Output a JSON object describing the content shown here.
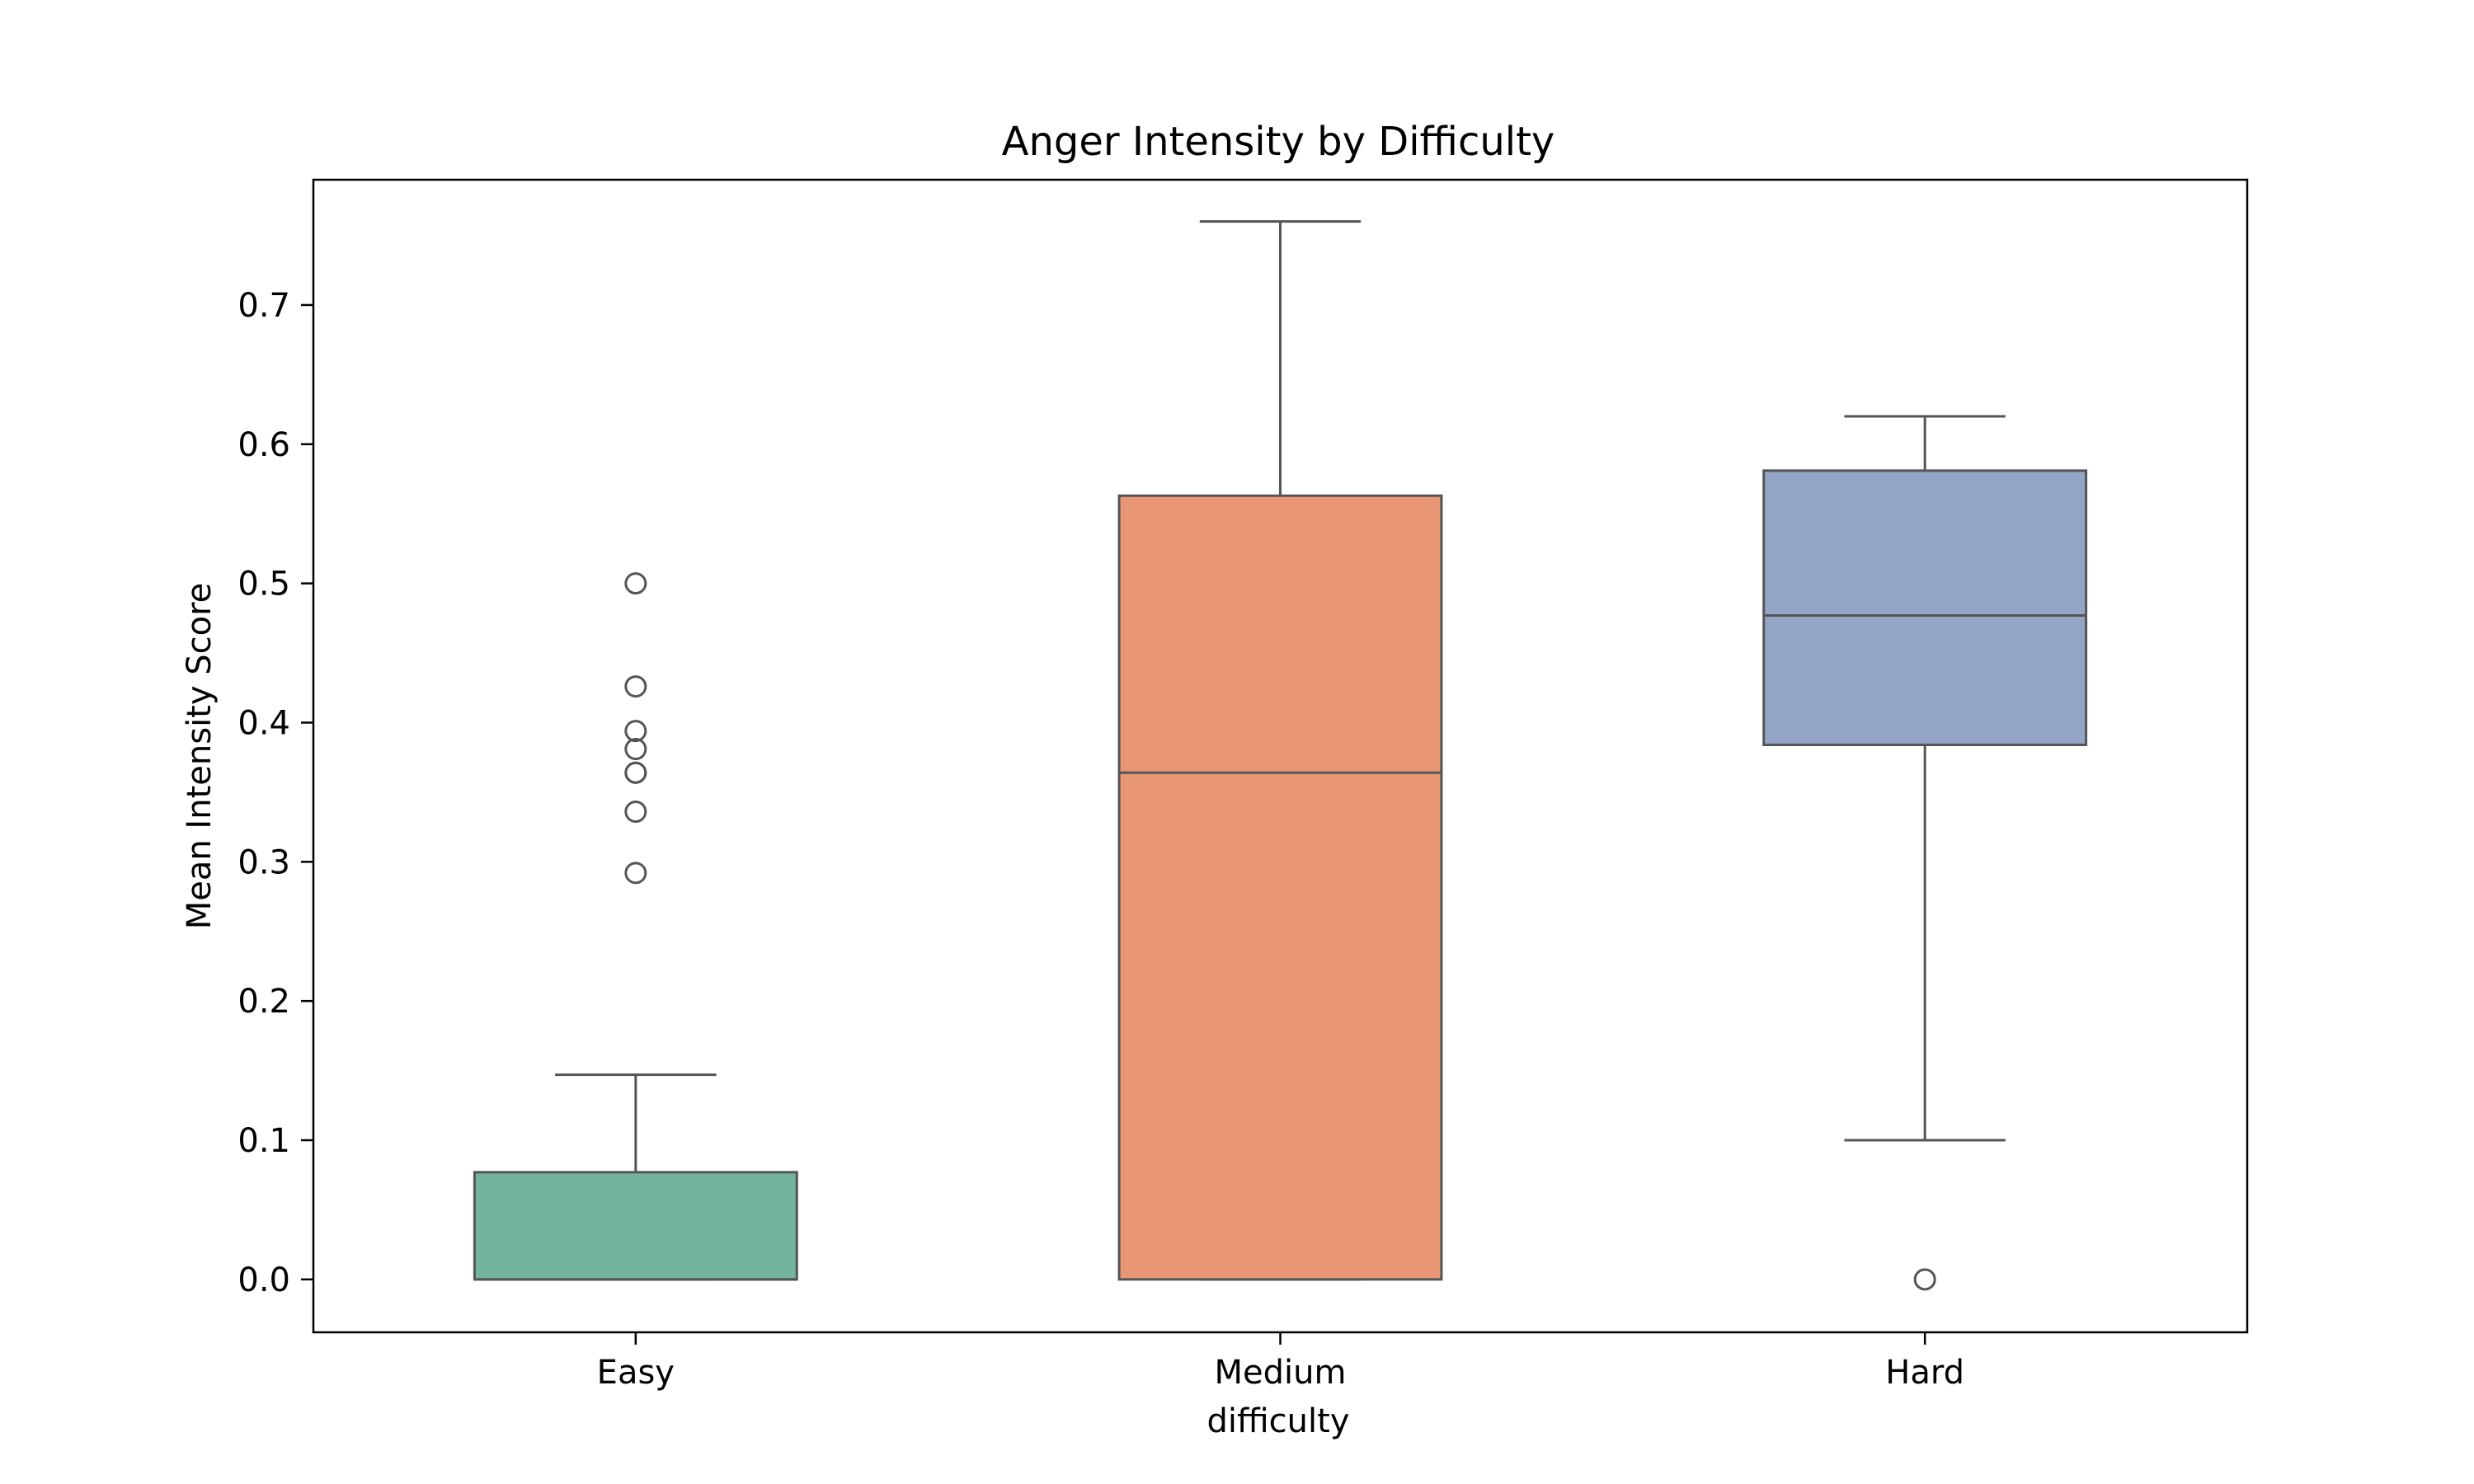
{
  "chart_data": {
    "type": "box",
    "title": "Anger Intensity by Difficulty",
    "xlabel": "difficulty",
    "ylabel": "Mean Intensity Score",
    "ylim": [
      -0.038,
      0.79
    ],
    "yticks": [
      0.0,
      0.1,
      0.2,
      0.3,
      0.4,
      0.5,
      0.6,
      0.7
    ],
    "ytick_labels": [
      "0.0",
      "0.1",
      "0.2",
      "0.3",
      "0.4",
      "0.5",
      "0.6",
      "0.7"
    ],
    "grid": false,
    "categories": [
      "Easy",
      "Medium",
      "Hard"
    ],
    "boxes": [
      {
        "category": "Easy",
        "color": "#73b49f",
        "whisker_low": 0.0,
        "q1": 0.0,
        "median": 0.0,
        "q3": 0.077,
        "whisker_high": 0.147,
        "outliers": [
          0.5,
          0.426,
          0.394,
          0.381,
          0.364,
          0.364,
          0.336,
          0.292
        ]
      },
      {
        "category": "Medium",
        "color": "#e89674",
        "whisker_low": 0.0,
        "q1": 0.0,
        "median": 0.364,
        "q3": 0.563,
        "whisker_high": 0.76,
        "outliers": []
      },
      {
        "category": "Hard",
        "color": "#95a5c5",
        "whisker_low": 0.1,
        "q1": 0.384,
        "median": 0.477,
        "q3": 0.581,
        "whisker_high": 0.62,
        "outliers": [
          0.0
        ]
      }
    ],
    "line_color": "#555555"
  }
}
